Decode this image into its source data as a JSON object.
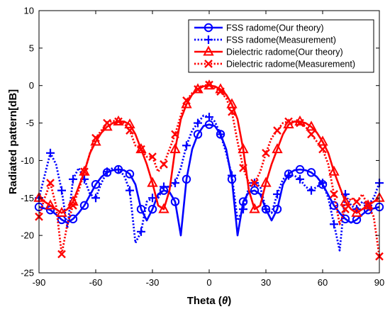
{
  "chart_data": {
    "type": "line",
    "xlabel": "Theta (",
    "xlabel_symbol": "θ",
    "xlabel_close": ")",
    "ylabel": "Radiated pattern[dB]",
    "xlim": [
      -90,
      90
    ],
    "ylim": [
      -25,
      10
    ],
    "xticks": [
      -90,
      -60,
      -30,
      0,
      30,
      60,
      90
    ],
    "yticks": [
      10,
      5,
      0,
      -5,
      -10,
      -15,
      -20,
      -25
    ],
    "grid": false,
    "legend_position": "top-right",
    "series": [
      {
        "name": "FSS radome(Our theory)",
        "color": "#0000ff",
        "line": "solid",
        "marker": "circle",
        "x": [
          -90,
          -87,
          -84,
          -81,
          -78,
          -75,
          -72,
          -69,
          -66,
          -63,
          -60,
          -57,
          -54,
          -51,
          -48,
          -45,
          -42,
          -39,
          -36,
          -33,
          -30,
          -27,
          -24,
          -21,
          -18,
          -15,
          -12,
          -9,
          -6,
          -3,
          0,
          3,
          6,
          9,
          12,
          15,
          18,
          21,
          24,
          27,
          30,
          33,
          36,
          39,
          42,
          45,
          48,
          51,
          54,
          57,
          60,
          63,
          66,
          69,
          72,
          75,
          78,
          81,
          84,
          87,
          90
        ],
        "y": [
          -16.2,
          -16.4,
          -16.6,
          -17.2,
          -17.9,
          -18.3,
          -17.8,
          -17.0,
          -16.0,
          -14.6,
          -13.2,
          -12.2,
          -11.6,
          -11.3,
          -11.2,
          -11.3,
          -11.8,
          -13.2,
          -16.5,
          -18.0,
          -16.5,
          -14.5,
          -14.0,
          -14.2,
          -15.5,
          -20.0,
          -12.5,
          -8.5,
          -6.5,
          -5.4,
          -5.2,
          -5.4,
          -6.5,
          -8.5,
          -12.5,
          -20.0,
          -15.5,
          -14.2,
          -14.0,
          -14.5,
          -16.5,
          -18.0,
          -16.5,
          -13.2,
          -11.8,
          -11.3,
          -11.2,
          -11.3,
          -11.6,
          -12.2,
          -13.2,
          -14.6,
          -16.0,
          -17.0,
          -17.8,
          -18.3,
          -17.9,
          -17.2,
          -16.6,
          -16.4,
          -16.2
        ],
        "marker_x": [
          -90,
          -84,
          -78,
          -72,
          -66,
          -60,
          -54,
          -48,
          -42,
          -36,
          -30,
          -24,
          -18,
          -12,
          -6,
          0,
          6,
          12,
          18,
          24,
          30,
          36,
          42,
          48,
          54,
          60,
          66,
          72,
          78,
          84,
          90
        ]
      },
      {
        "name": "FSS radome(Measurement)",
        "color": "#0000ff",
        "line": "dotted",
        "marker": "plus",
        "x": [
          -90,
          -87,
          -84,
          -81,
          -78,
          -75,
          -72,
          -69,
          -66,
          -63,
          -60,
          -57,
          -54,
          -51,
          -48,
          -45,
          -42,
          -39,
          -36,
          -33,
          -30,
          -27,
          -24,
          -21,
          -18,
          -15,
          -12,
          -9,
          -6,
          -3,
          0,
          3,
          6,
          9,
          12,
          15,
          18,
          21,
          24,
          27,
          30,
          33,
          36,
          39,
          42,
          45,
          48,
          51,
          54,
          57,
          60,
          63,
          66,
          69,
          72,
          75,
          78,
          81,
          84,
          87,
          90
        ],
        "y": [
          -15.0,
          -12.0,
          -9.0,
          -10.5,
          -14.0,
          -19.0,
          -12.5,
          -11.0,
          -12.5,
          -14.5,
          -15.0,
          -13.0,
          -11.5,
          -11.0,
          -11.2,
          -12.0,
          -14.0,
          -21.0,
          -19.5,
          -15.5,
          -15.0,
          -15.0,
          -13.5,
          -13.5,
          -13.0,
          -11.0,
          -8.0,
          -6.0,
          -5.0,
          -4.0,
          -4.2,
          -4.8,
          -6.5,
          -9.0,
          -12.0,
          -18.0,
          -16.5,
          -13.5,
          -13.0,
          -13.5,
          -16.5,
          -17.0,
          -14.5,
          -12.5,
          -12.0,
          -12.0,
          -12.5,
          -13.5,
          -14.0,
          -13.5,
          -13.0,
          -15.0,
          -18.5,
          -22.0,
          -14.5,
          -16.0,
          -16.5,
          -15.5,
          -16.0,
          -15.0,
          -13.0
        ],
        "marker_x": [
          -90,
          -84,
          -78,
          -72,
          -66,
          -60,
          -54,
          -48,
          -42,
          -36,
          -30,
          -24,
          -18,
          -12,
          -6,
          0,
          6,
          12,
          18,
          24,
          30,
          36,
          42,
          48,
          54,
          60,
          66,
          72,
          78,
          84,
          90
        ]
      },
      {
        "name": "Dielectric radome(Our theory)",
        "color": "#ff0000",
        "line": "solid",
        "marker": "triangle",
        "x": [
          -90,
          -87,
          -84,
          -81,
          -78,
          -75,
          -72,
          -69,
          -66,
          -63,
          -60,
          -57,
          -54,
          -51,
          -48,
          -45,
          -42,
          -39,
          -36,
          -33,
          -30,
          -27,
          -24,
          -21,
          -18,
          -15,
          -12,
          -9,
          -6,
          -3,
          0,
          3,
          6,
          9,
          12,
          15,
          18,
          21,
          24,
          27,
          30,
          33,
          36,
          39,
          42,
          45,
          48,
          51,
          54,
          57,
          60,
          63,
          66,
          69,
          72,
          75,
          78,
          81,
          84,
          87,
          90
        ],
        "y": [
          -15.0,
          -15.5,
          -16.0,
          -16.5,
          -17.0,
          -16.5,
          -15.5,
          -13.5,
          -11.5,
          -9.0,
          -7.5,
          -6.3,
          -5.5,
          -5.0,
          -4.8,
          -4.8,
          -5.2,
          -6.5,
          -8.5,
          -10.5,
          -13.0,
          -16.0,
          -16.5,
          -14.0,
          -8.5,
          -4.5,
          -2.5,
          -1.2,
          -0.5,
          -0.1,
          0.0,
          -0.1,
          -0.5,
          -1.2,
          -2.5,
          -4.5,
          -8.5,
          -14.0,
          -16.5,
          -16.0,
          -13.0,
          -10.5,
          -8.5,
          -6.5,
          -5.2,
          -4.8,
          -4.8,
          -5.0,
          -5.5,
          -6.3,
          -7.5,
          -9.0,
          -11.5,
          -13.5,
          -15.5,
          -16.5,
          -17.0,
          -16.5,
          -16.0,
          -15.5,
          -15.0
        ],
        "marker_x": [
          -90,
          -84,
          -78,
          -72,
          -66,
          -60,
          -54,
          -48,
          -42,
          -36,
          -30,
          -24,
          -18,
          -12,
          -6,
          0,
          6,
          12,
          18,
          24,
          30,
          36,
          42,
          48,
          54,
          60,
          66,
          72,
          78,
          84,
          90
        ]
      },
      {
        "name": "Dielectric radome(Measurement)",
        "color": "#ff0000",
        "line": "dotted",
        "marker": "x",
        "x": [
          -90,
          -87,
          -84,
          -81,
          -78,
          -75,
          -72,
          -69,
          -66,
          -63,
          -60,
          -57,
          -54,
          -51,
          -48,
          -45,
          -42,
          -39,
          -36,
          -33,
          -30,
          -27,
          -24,
          -21,
          -18,
          -15,
          -12,
          -9,
          -6,
          -3,
          0,
          3,
          6,
          9,
          12,
          15,
          18,
          21,
          24,
          27,
          30,
          33,
          36,
          39,
          42,
          45,
          48,
          51,
          54,
          57,
          60,
          63,
          66,
          69,
          72,
          75,
          78,
          81,
          84,
          87,
          90
        ],
        "y": [
          -17.5,
          -15.0,
          -13.0,
          -16.0,
          -22.5,
          -18.5,
          -16.0,
          -14.0,
          -11.5,
          -9.0,
          -7.0,
          -6.0,
          -5.0,
          -4.7,
          -4.8,
          -5.0,
          -6.0,
          -8.0,
          -8.5,
          -9.5,
          -9.5,
          -11.5,
          -10.5,
          -8.5,
          -6.5,
          -4.0,
          -2.0,
          -1.0,
          -0.5,
          0.0,
          0.1,
          -0.3,
          -0.8,
          -1.7,
          -3.5,
          -7.5,
          -11.0,
          -13.0,
          -13.0,
          -11.5,
          -9.0,
          -7.0,
          -6.0,
          -5.0,
          -4.8,
          -4.8,
          -5.0,
          -5.5,
          -6.5,
          -7.5,
          -8.5,
          -10.5,
          -14.5,
          -18.5,
          -16.5,
          -15.0,
          -15.5,
          -14.5,
          -16.0,
          -17.5,
          -22.8
        ],
        "marker_x": [
          -90,
          -84,
          -78,
          -72,
          -66,
          -60,
          -54,
          -48,
          -42,
          -36,
          -30,
          -24,
          -18,
          -12,
          -6,
          0,
          6,
          12,
          18,
          24,
          30,
          36,
          42,
          48,
          54,
          60,
          66,
          72,
          78,
          84,
          90
        ]
      }
    ]
  }
}
